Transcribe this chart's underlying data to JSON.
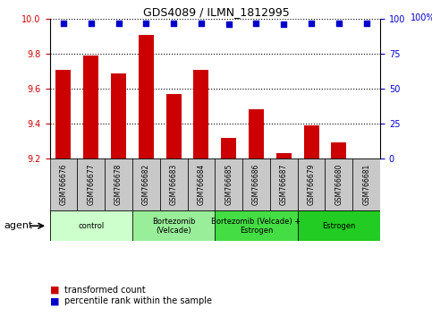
{
  "title": "GDS4089 / ILMN_1812995",
  "samples": [
    "GSM766676",
    "GSM766677",
    "GSM766678",
    "GSM766682",
    "GSM766683",
    "GSM766684",
    "GSM766685",
    "GSM766686",
    "GSM766687",
    "GSM766679",
    "GSM766680",
    "GSM766681"
  ],
  "bar_values": [
    9.71,
    9.79,
    9.69,
    9.91,
    9.57,
    9.71,
    9.32,
    9.48,
    9.23,
    9.39,
    9.29,
    9.2
  ],
  "bar_base": 9.2,
  "dot_values": [
    97,
    97,
    97,
    97,
    97,
    97,
    96,
    97,
    96,
    97,
    97,
    97
  ],
  "dot_scale_max": 100,
  "ylim_left": [
    9.2,
    10.0
  ],
  "ylim_right": [
    0,
    100
  ],
  "yticks_left": [
    9.2,
    9.4,
    9.6,
    9.8,
    10.0
  ],
  "yticks_right": [
    0,
    25,
    50,
    75,
    100
  ],
  "bar_color": "#cc0000",
  "dot_color": "#0000cc",
  "grid_color": "#000000",
  "groups": [
    {
      "label": "control",
      "start": 0,
      "end": 3,
      "color": "#ccffcc"
    },
    {
      "label": "Bortezomib\n(Velcade)",
      "start": 3,
      "end": 6,
      "color": "#99ee99"
    },
    {
      "label": "Bortezomib (Velcade) +\nEstrogen",
      "start": 6,
      "end": 9,
      "color": "#44dd44"
    },
    {
      "label": "Estrogen",
      "start": 9,
      "end": 12,
      "color": "#22cc22"
    }
  ],
  "agent_label": "agent",
  "legend_bar_label": "transformed count",
  "legend_dot_label": "percentile rank within the sample",
  "tick_label_color_left": "#cc0000",
  "tick_label_color_right": "#0000cc",
  "tick_box_color": "#c8c8c8",
  "fig_width": 4.83,
  "fig_height": 3.54,
  "dpi": 100
}
